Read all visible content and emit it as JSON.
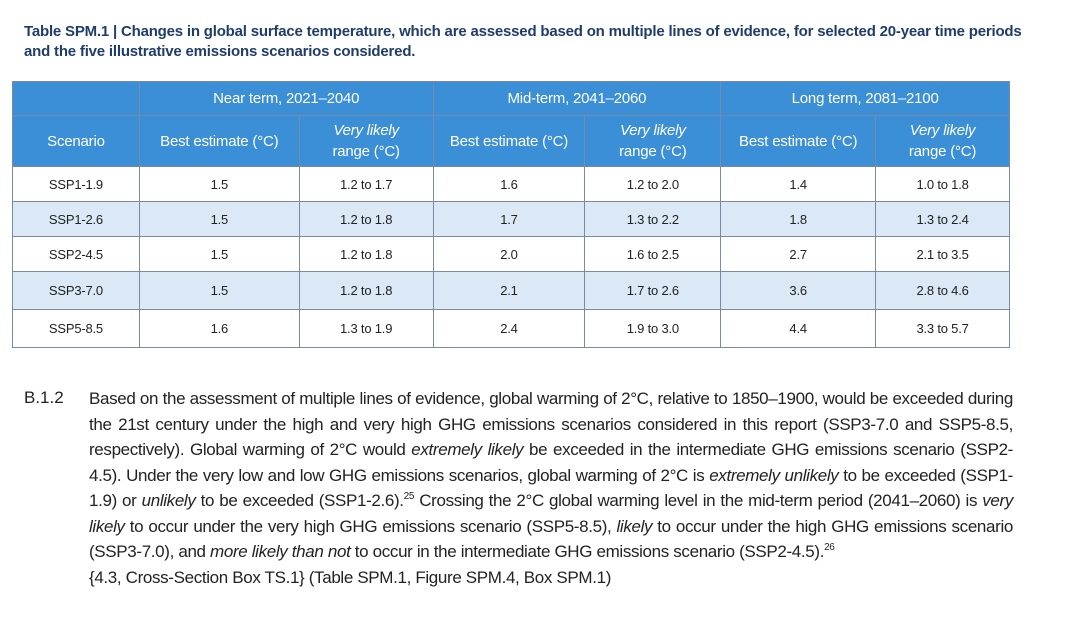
{
  "caption": "Table SPM.1 | Changes in global surface temperature, which are assessed based on multiple lines of evidence, for selected 20-year time periods and the five illustrative emissions scenarios considered.",
  "table": {
    "periods": [
      "Near term, 2021–2040",
      "Mid-term, 2041–2060",
      "Long term, 2081–2100"
    ],
    "scenario_header": "Scenario",
    "best_header": "Best estimate (°C)",
    "range_header_line1": "Very likely",
    "range_header_line2": "range (°C)",
    "rows": [
      {
        "scenario": "SSP1-1.9",
        "near_best": "1.5",
        "near_range": "1.2 to 1.7",
        "mid_best": "1.6",
        "mid_range": "1.2 to 2.0",
        "long_best": "1.4",
        "long_range": "1.0 to 1.8"
      },
      {
        "scenario": "SSP1-2.6",
        "near_best": "1.5",
        "near_range": "1.2 to 1.8",
        "mid_best": "1.7",
        "mid_range": "1.3 to 2.2",
        "long_best": "1.8",
        "long_range": "1.3 to 2.4"
      },
      {
        "scenario": "SSP2-4.5",
        "near_best": "1.5",
        "near_range": "1.2 to 1.8",
        "mid_best": "2.0",
        "mid_range": "1.6 to 2.5",
        "long_best": "2.7",
        "long_range": "2.1 to 3.5"
      },
      {
        "scenario": "SSP3-7.0",
        "near_best": "1.5",
        "near_range": "1.2 to 1.8",
        "mid_best": "2.1",
        "mid_range": "1.7 to 2.6",
        "long_best": "3.6",
        "long_range": "2.8 to 4.6"
      },
      {
        "scenario": "SSP5-8.5",
        "near_best": "1.6",
        "near_range": "1.3 to 1.9",
        "mid_best": "2.4",
        "mid_range": "1.9 to 3.0",
        "long_best": "4.4",
        "long_range": "3.3 to 5.7"
      }
    ]
  },
  "section": {
    "number": "B.1.2",
    "t1": "Based on the assessment of multiple lines of evidence, global warming of 2°C, relative to 1850–1900, would be exceeded during the 21st century under the high and very high GHG emissions scenarios considered in this report (SSP3-7.0 and SSP5-8.5, respectively). Global warming of 2°C would ",
    "i1": "extremely likely",
    "t2": " be exceeded in the intermediate GHG emissions scenario (SSP2-4.5). Under the very low and low GHG emissions scenarios, global warming of 2°C is ",
    "i2": "extremely unlikely",
    "t3": " to be exceeded (SSP1-1.9) or ",
    "i3": "unlikely",
    "t4": " to be exceeded (SSP1-2.6).",
    "fn1": "25",
    "t5": " Crossing the 2°C global warming level in the mid-term period (2041–2060) is ",
    "i4": "very likely",
    "t6": " to occur under the very high GHG emissions scenario (SSP5-8.5), ",
    "i5": "likely",
    "t7": " to occur under the high GHG emissions scenario (SSP3-7.0), and ",
    "i6": "more likely than not",
    "t8": " to occur in the intermediate GHG emissions scenario (SSP2-4.5).",
    "fn2": "26",
    "refs": "{4.3, Cross-Section Box TS.1} (Table SPM.1, Figure SPM.4, Box SPM.1)"
  }
}
